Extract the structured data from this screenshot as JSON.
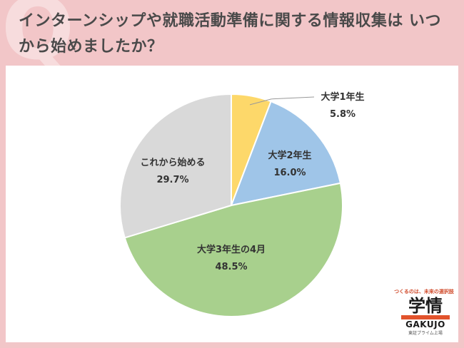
{
  "header": {
    "watermark_letter": "Q",
    "title": "インターンシップや就職活動準備に関する情報収集は いつから始めましたか？"
  },
  "chart_data": {
    "type": "pie",
    "title": "",
    "start_angle_deg": 0,
    "direction": "clockwise",
    "slices": [
      {
        "name": "大学1年生",
        "value": 5.8,
        "label": "5.8%",
        "color": "#fdd86a"
      },
      {
        "name": "大学2年生",
        "value": 16.0,
        "label": "16.0%",
        "color": "#9fc5e8"
      },
      {
        "name": "大学3年生の4月",
        "value": 48.5,
        "label": "48.5%",
        "color": "#a8d08d"
      },
      {
        "name": "これから始める",
        "value": 29.7,
        "label": "29.7%",
        "color": "#d9d9d9"
      }
    ]
  },
  "logo": {
    "tagline": "つくるのは、未来の選択肢",
    "mark": "学情",
    "wordmark": "GAKUJO",
    "subtext": "東証プライム上場"
  }
}
